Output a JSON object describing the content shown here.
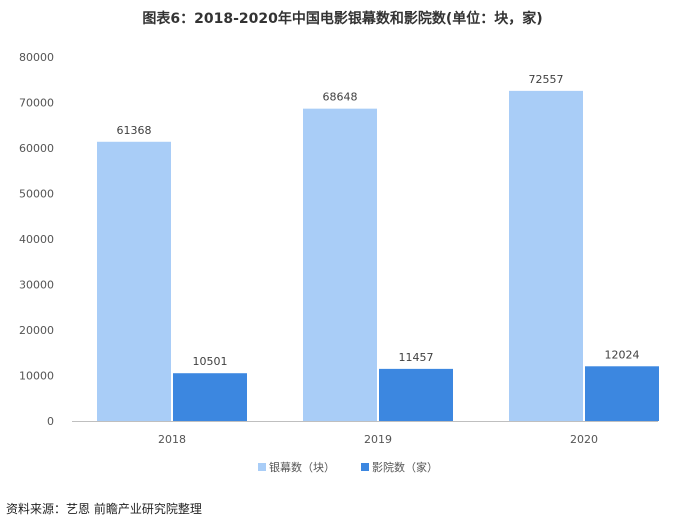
{
  "chart_data": {
    "type": "bar",
    "title": "图表6：2018-2020年中国电影银幕数和影院数(单位：块，家)",
    "categories": [
      "2018",
      "2019",
      "2020"
    ],
    "series": [
      {
        "name": "银幕数（块）",
        "values": [
          61368,
          68648,
          72557
        ],
        "color": "#a9cdf7"
      },
      {
        "name": "影院数（家）",
        "values": [
          10501,
          11457,
          12024
        ],
        "color": "#3c87e0"
      }
    ],
    "ylim": [
      0,
      80000
    ],
    "yticks": [
      "0",
      "10000",
      "20000",
      "30000",
      "40000",
      "50000",
      "60000",
      "70000",
      "80000"
    ],
    "grid": false,
    "legend": "bottom"
  },
  "source": "资料来源：艺恩 前瞻产业研究院整理"
}
